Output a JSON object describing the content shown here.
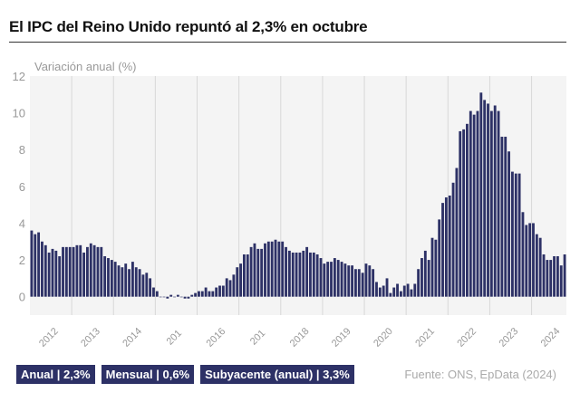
{
  "title": "El IPC del Reino Unido repuntó al 2,3% en octubre",
  "legend": [
    "Anual | 2,3%",
    "Mensual | 0,6%",
    "Subyacente (anual) | 3,3%"
  ],
  "source": "Fuente: ONS, EpData (2024)",
  "colors": {
    "bars": "#2d3166",
    "plot_bg": "#f4f4f4",
    "grid": "#d8d8d8",
    "text_muted": "#999999"
  },
  "chart_data": {
    "type": "bar",
    "ylabel": "Variación anual (%)",
    "ylim": [
      -1,
      12
    ],
    "yticks": [
      0,
      2,
      4,
      6,
      8,
      10,
      12
    ],
    "grid": "vertical by year",
    "x_start": "2012-01",
    "x_end": "2024-10",
    "xtick_labels": [
      "2012",
      "2013",
      "2014",
      "201",
      "2016",
      "201",
      "2018",
      "2019",
      "2020",
      "2021",
      "2022",
      "2023",
      "2024"
    ],
    "values": [
      3.6,
      3.4,
      3.5,
      3.0,
      2.8,
      2.4,
      2.6,
      2.5,
      2.2,
      2.7,
      2.7,
      2.7,
      2.7,
      2.8,
      2.8,
      2.4,
      2.7,
      2.9,
      2.8,
      2.7,
      2.7,
      2.2,
      2.1,
      2.0,
      1.9,
      1.7,
      1.6,
      1.8,
      1.5,
      1.9,
      1.6,
      1.5,
      1.2,
      1.3,
      1.0,
      0.5,
      0.3,
      0.0,
      0.0,
      -0.1,
      0.1,
      0.0,
      0.1,
      0.0,
      -0.1,
      -0.1,
      0.1,
      0.2,
      0.3,
      0.3,
      0.5,
      0.3,
      0.3,
      0.5,
      0.6,
      0.6,
      1.0,
      0.9,
      1.2,
      1.6,
      1.8,
      2.3,
      2.3,
      2.7,
      2.9,
      2.6,
      2.6,
      2.9,
      3.0,
      3.0,
      3.1,
      3.0,
      3.0,
      2.7,
      2.5,
      2.4,
      2.4,
      2.4,
      2.5,
      2.7,
      2.4,
      2.4,
      2.3,
      2.1,
      1.8,
      1.9,
      1.9,
      2.1,
      2.0,
      1.9,
      1.8,
      1.7,
      1.7,
      1.5,
      1.5,
      1.3,
      1.8,
      1.7,
      1.5,
      0.8,
      0.5,
      0.6,
      1.0,
      0.2,
      0.5,
      0.7,
      0.3,
      0.6,
      0.7,
      0.4,
      0.7,
      1.5,
      2.1,
      2.5,
      2.0,
      3.2,
      3.1,
      4.2,
      5.1,
      5.4,
      5.5,
      6.2,
      7.0,
      9.0,
      9.1,
      9.4,
      10.1,
      9.9,
      10.1,
      11.1,
      10.7,
      10.5,
      10.1,
      10.4,
      10.1,
      8.7,
      8.7,
      7.9,
      6.8,
      6.7,
      6.7,
      4.6,
      3.9,
      4.0,
      4.0,
      3.4,
      3.2,
      2.3,
      2.0,
      2.0,
      2.2,
      2.2,
      1.7,
      2.3
    ]
  }
}
